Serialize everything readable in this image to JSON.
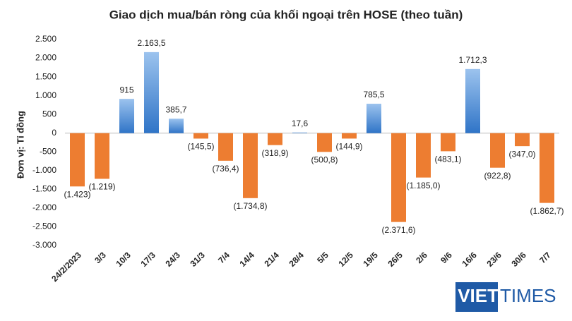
{
  "chart_data": {
    "type": "bar",
    "title": "Giao dịch mua/bán ròng của khối ngoại trên HOSE (theo tuần)",
    "y_axis_label": "Đơn vị: Tỉ đồng",
    "categories": [
      "24/2/2023",
      "3/3",
      "10/3",
      "17/3",
      "24/3",
      "31/3",
      "7/4",
      "14/4",
      "21/4",
      "28/4",
      "5/5",
      "12/5",
      "19/5",
      "26/5",
      "2/6",
      "9/6",
      "16/6",
      "23/6",
      "30/6",
      "7/7"
    ],
    "values": [
      -1423,
      -1219,
      915,
      2163.5,
      385.7,
      -145.5,
      -736.4,
      -1734.8,
      -318.9,
      17.6,
      -500.8,
      -144.9,
      785.5,
      -2371.6,
      -1185.0,
      -483.1,
      1712.3,
      -922.8,
      -347.0,
      -1862.7
    ],
    "value_labels": [
      "(1.423)",
      "(1.219)",
      "915",
      "2.163,5",
      "385,7",
      "(145,5)",
      "(736,4)",
      "(1.734,8)",
      "(318,9)",
      "17,6",
      "(500,8)",
      "(144,9)",
      "785,5",
      "(2.371,6)",
      "(1.185,0)",
      "(483,1)",
      "1.712,3",
      "(922,8)",
      "(347,0)",
      "(1.862,7)"
    ],
    "positive_color": "#4a8bd6",
    "negative_color": "#ed7d31",
    "ylim": [
      -3000,
      2500
    ],
    "yticks": [
      {
        "value": -3000,
        "label": "-3.000"
      },
      {
        "value": -2500,
        "label": "-2.500"
      },
      {
        "value": -2000,
        "label": "-2.000"
      },
      {
        "value": -1500,
        "label": "-1.500"
      },
      {
        "value": -1000,
        "label": "-1.000"
      },
      -500,
      0,
      500,
      {
        "value": 1000,
        "label": "1.000"
      },
      {
        "value": 1500,
        "label": "1.500"
      },
      {
        "value": 2000,
        "label": "2.000"
      },
      {
        "value": 2500,
        "label": "2.500"
      }
    ],
    "grid": false,
    "logo": {
      "part1": "VIET",
      "part2": "TIMES"
    }
  }
}
